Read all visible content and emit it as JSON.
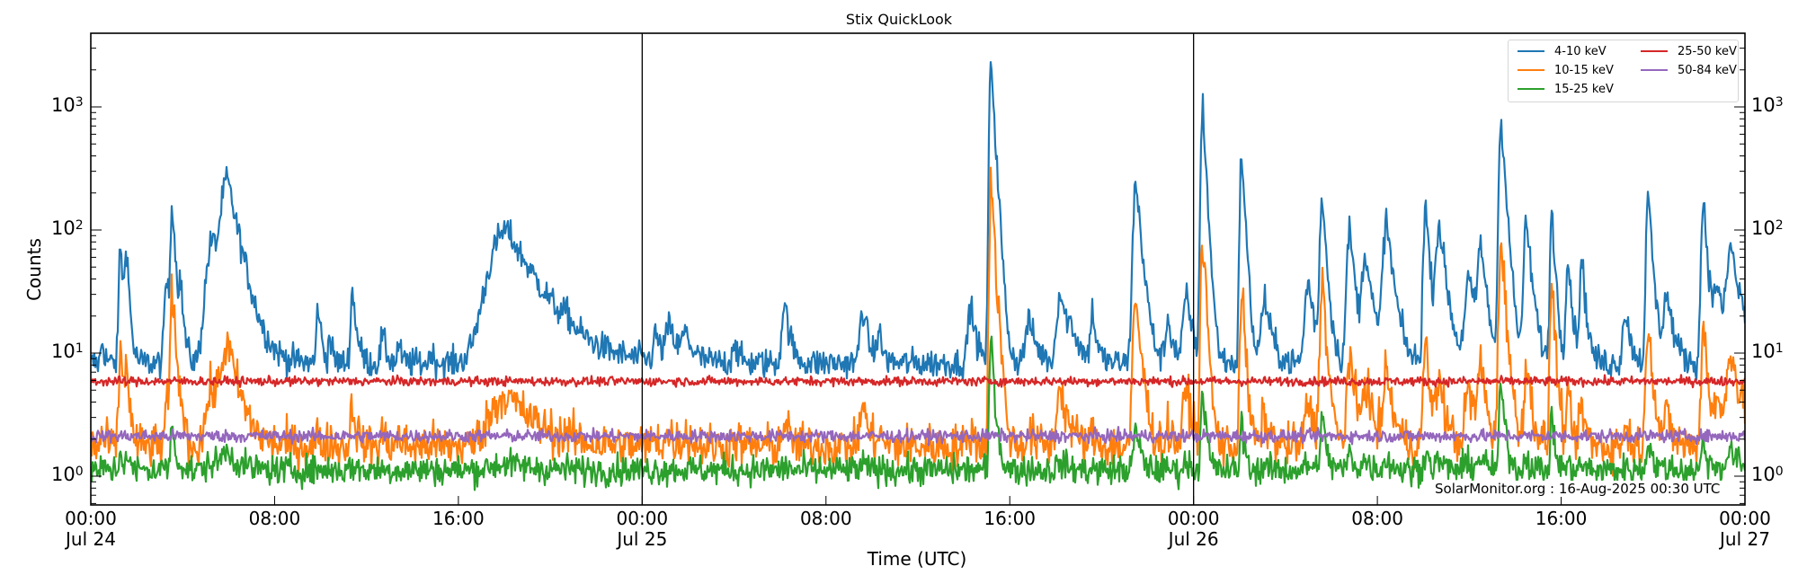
{
  "chart_data": {
    "type": "line",
    "title": "Stix QuickLook",
    "xlabel": "Time (UTC)",
    "ylabel": "Counts",
    "yscale": "log",
    "ylim": [
      0.58,
      4000
    ],
    "xlim_hours": [
      0,
      72
    ],
    "grid": false,
    "legend_position": "upper right",
    "annotation": "SolarMonitor.org : 16-Aug-2025 00:30 UTC",
    "x_ticks": [
      {
        "hour": 0,
        "label": "00:00\nJul 24"
      },
      {
        "hour": 8,
        "label": "08:00"
      },
      {
        "hour": 16,
        "label": "16:00"
      },
      {
        "hour": 24,
        "label": "00:00\nJul 25"
      },
      {
        "hour": 32,
        "label": "08:00"
      },
      {
        "hour": 40,
        "label": "16:00"
      },
      {
        "hour": 48,
        "label": "00:00\nJul 26"
      },
      {
        "hour": 56,
        "label": "08:00"
      },
      {
        "hour": 64,
        "label": "16:00"
      },
      {
        "hour": 72,
        "label": "00:00\nJul 27"
      }
    ],
    "day_separators_hours": [
      24,
      48
    ],
    "y_ticks": [
      {
        "value": 1,
        "base": "10",
        "exp": "0"
      },
      {
        "value": 10,
        "base": "10",
        "exp": "1"
      },
      {
        "value": 100,
        "base": "10",
        "exp": "2"
      },
      {
        "value": 1000,
        "base": "10",
        "exp": "3"
      }
    ],
    "series": [
      {
        "name": "4-10 keV",
        "color": "#1f77b4",
        "baseline": 8.3,
        "noise": 0.06
      },
      {
        "name": "10-15 keV",
        "color": "#ff7f0e",
        "baseline": 1.75,
        "noise": 0.09
      },
      {
        "name": "15-25 keV",
        "color": "#2ca02c",
        "baseline": 1.12,
        "noise": 0.06
      },
      {
        "name": "25-50 keV",
        "color": "#d62728",
        "baseline": 5.9,
        "noise": 0.018
      },
      {
        "name": "50-84 keV",
        "color": "#9467bd",
        "baseline": 2.12,
        "noise": 0.025
      }
    ],
    "flares": [
      {
        "t": 0.5,
        "peak_4_10": 13,
        "peak_10_15": 2.2,
        "w": 0.1
      },
      {
        "t": 1.3,
        "peak_4_10": 77,
        "peak_10_15": 11,
        "w": 0.12
      },
      {
        "t": 1.55,
        "peak_4_10": 75,
        "peak_10_15": 9,
        "w": 0.1
      },
      {
        "t": 3.3,
        "peak_4_10": 40,
        "peak_10_15": 4,
        "w": 0.15
      },
      {
        "t": 3.55,
        "peak_4_10": 170,
        "peak_10_15": 32,
        "w": 0.12
      },
      {
        "t": 3.9,
        "peak_4_10": 33,
        "peak_10_15": 4,
        "w": 0.12
      },
      {
        "t": 5.3,
        "peak_4_10": 80,
        "peak_10_15": 5,
        "w": 0.45
      },
      {
        "t": 5.95,
        "peak_4_10": 240,
        "peak_10_15": 11,
        "w": 0.45
      },
      {
        "t": 9.9,
        "peak_4_10": 25,
        "peak_10_15": 2.2,
        "w": 0.12
      },
      {
        "t": 10.4,
        "peak_4_10": 14,
        "peak_10_15": 2,
        "w": 0.1
      },
      {
        "t": 11.4,
        "peak_4_10": 32,
        "peak_10_15": 4,
        "w": 0.15
      },
      {
        "t": 12.7,
        "peak_4_10": 14,
        "peak_10_15": 2.2,
        "w": 0.15
      },
      {
        "t": 13.4,
        "peak_4_10": 12,
        "peak_10_15": 2.2,
        "w": 0.1
      },
      {
        "t": 14.8,
        "peak_4_10": 11,
        "peak_10_15": 2,
        "w": 0.1
      },
      {
        "t": 18.1,
        "peak_4_10": 100,
        "peak_10_15": 4.6,
        "w": 1.2
      },
      {
        "t": 20.7,
        "peak_4_10": 12,
        "peak_10_15": 2,
        "w": 0.15
      },
      {
        "t": 24.6,
        "peak_4_10": 14,
        "peak_10_15": 2.1,
        "w": 0.2
      },
      {
        "t": 25.2,
        "peak_4_10": 16,
        "peak_10_15": 2.1,
        "w": 0.3
      },
      {
        "t": 25.9,
        "peak_4_10": 14,
        "peak_10_15": 2.1,
        "w": 0.3
      },
      {
        "t": 28.0,
        "peak_4_10": 13,
        "peak_10_15": 2.1,
        "w": 0.15
      },
      {
        "t": 30.2,
        "peak_4_10": 26,
        "peak_10_15": 2.8,
        "w": 0.2
      },
      {
        "t": 33.6,
        "peak_4_10": 24,
        "peak_10_15": 4,
        "w": 0.2
      },
      {
        "t": 34.3,
        "peak_4_10": 15,
        "peak_10_15": 2.2,
        "w": 0.15
      },
      {
        "t": 38.3,
        "peak_4_10": 25,
        "peak_10_15": 2.3,
        "w": 0.2
      },
      {
        "t": 39.2,
        "peak_4_10": 2400,
        "peak_10_15": 250,
        "w": 0.12
      },
      {
        "t": 39.55,
        "peak_4_10": 30,
        "peak_10_15": 5.5,
        "w": 0.15
      },
      {
        "t": 40.85,
        "peak_4_10": 18,
        "peak_10_15": 2.2,
        "w": 0.3
      },
      {
        "t": 42.2,
        "peak_4_10": 32,
        "peak_10_15": 5.5,
        "w": 0.25
      },
      {
        "t": 42.7,
        "peak_4_10": 14,
        "peak_10_15": 2,
        "w": 0.4
      },
      {
        "t": 43.6,
        "peak_4_10": 22,
        "peak_10_15": 2.2,
        "w": 0.15
      },
      {
        "t": 45.5,
        "peak_4_10": 240,
        "peak_10_15": 26,
        "w": 0.2
      },
      {
        "t": 46.9,
        "peak_4_10": 19,
        "peak_10_15": 2.4,
        "w": 0.2
      },
      {
        "t": 47.7,
        "peak_4_10": 28,
        "peak_10_15": 5,
        "w": 0.25
      },
      {
        "t": 48.4,
        "peak_4_10": 1050,
        "peak_10_15": 92,
        "w": 0.12
      },
      {
        "t": 50.1,
        "peak_4_10": 430,
        "peak_10_15": 35,
        "w": 0.12
      },
      {
        "t": 51.1,
        "peak_4_10": 28,
        "peak_10_15": 3,
        "w": 0.25
      },
      {
        "t": 53.0,
        "peak_4_10": 38,
        "peak_10_15": 4,
        "w": 0.25
      },
      {
        "t": 53.6,
        "peak_4_10": 190,
        "peak_10_15": 40,
        "w": 0.15
      },
      {
        "t": 54.8,
        "peak_4_10": 100,
        "peak_10_15": 10,
        "w": 0.2
      },
      {
        "t": 55.5,
        "peak_4_10": 65,
        "peak_10_15": 6,
        "w": 0.25
      },
      {
        "t": 56.4,
        "peak_4_10": 115,
        "peak_10_15": 7,
        "w": 0.25
      },
      {
        "t": 58.1,
        "peak_4_10": 160,
        "peak_10_15": 13,
        "w": 0.15
      },
      {
        "t": 58.7,
        "peak_4_10": 110,
        "peak_10_15": 6,
        "w": 0.25
      },
      {
        "t": 60.0,
        "peak_4_10": 40,
        "peak_10_15": 5,
        "w": 0.3
      },
      {
        "t": 60.5,
        "peak_4_10": 75,
        "peak_10_15": 8,
        "w": 0.2
      },
      {
        "t": 61.4,
        "peak_4_10": 800,
        "peak_10_15": 85,
        "w": 0.15
      },
      {
        "t": 62.5,
        "peak_4_10": 110,
        "peak_10_15": 8,
        "w": 0.2
      },
      {
        "t": 63.6,
        "peak_4_10": 150,
        "peak_10_15": 40,
        "w": 0.12
      },
      {
        "t": 64.3,
        "peak_4_10": 60,
        "peak_10_15": 4,
        "w": 0.15
      },
      {
        "t": 64.9,
        "peak_4_10": 58,
        "peak_10_15": 4,
        "w": 0.15
      },
      {
        "t": 66.8,
        "peak_4_10": 22,
        "peak_10_15": 2.5,
        "w": 0.2
      },
      {
        "t": 67.8,
        "peak_4_10": 180,
        "peak_10_15": 20,
        "w": 0.15
      },
      {
        "t": 68.6,
        "peak_4_10": 30,
        "peak_10_15": 3,
        "w": 0.25
      },
      {
        "t": 70.2,
        "peak_4_10": 180,
        "peak_10_15": 18,
        "w": 0.15
      },
      {
        "t": 70.8,
        "peak_4_10": 35,
        "peak_10_15": 4,
        "w": 0.25
      },
      {
        "t": 71.4,
        "peak_4_10": 72,
        "peak_10_15": 11,
        "w": 0.3
      },
      {
        "t": 71.85,
        "peak_4_10": 14,
        "peak_10_15": 2.2,
        "w": 0.15
      }
    ]
  },
  "labels": {
    "title": "Stix QuickLook",
    "ylabel": "Counts",
    "xlabel": "Time (UTC)",
    "watermark": "SolarMonitor.org : 16-Aug-2025 00:30 UTC",
    "legend": [
      "4-10 keV",
      "10-15 keV",
      "15-25 keV",
      "25-50 keV",
      "50-84 keV"
    ]
  }
}
